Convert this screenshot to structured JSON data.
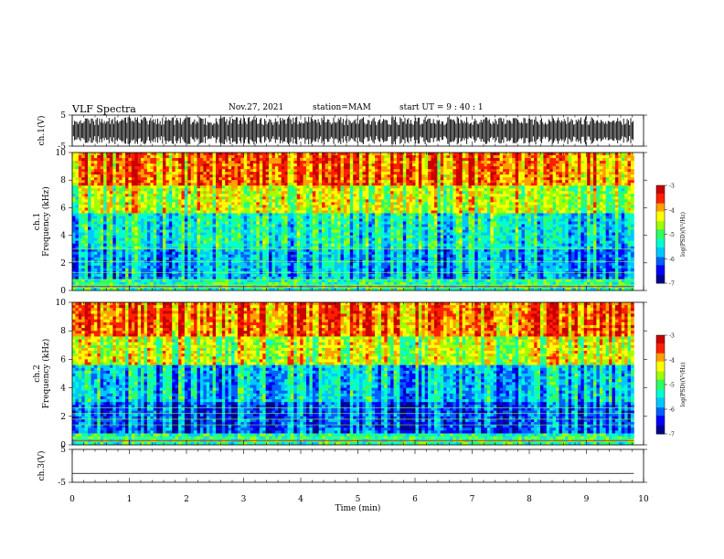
{
  "header": {
    "title": "VLF Spectra",
    "date": "Nov.27, 2021",
    "station": "station=MAM",
    "start": "start UT =  9 : 40 : 1"
  },
  "chart_data": [
    {
      "type": "line",
      "name": "ch1-waveform",
      "ylabel": "ch.1(V)",
      "xlim": [
        0,
        10
      ],
      "ylim": [
        -5,
        5
      ],
      "yticks": [
        5,
        -5
      ],
      "data_extent_min": [
        0,
        9.83
      ],
      "description_values": "dense noise bursts roughly between -5 and 5 V"
    },
    {
      "type": "heatmap",
      "name": "ch1-spectrogram",
      "ylabel": "ch.1\nFrequency (kHz)",
      "xlim": [
        0,
        10
      ],
      "ylim": [
        0,
        10
      ],
      "yticks": [
        0,
        2,
        4,
        6,
        8,
        10
      ],
      "data_extent_min": [
        0,
        9.83
      ],
      "colorbar": {
        "label": "log(PSD)(V²/Hz)",
        "range": [
          -7,
          -3
        ],
        "ticks": [
          -3,
          -4,
          -5,
          -6,
          -7
        ]
      }
    },
    {
      "type": "heatmap",
      "name": "ch2-spectrogram",
      "ylabel": "ch.2\nFrequency (kHz)",
      "xlim": [
        0,
        10
      ],
      "ylim": [
        0,
        10
      ],
      "yticks": [
        0,
        2,
        4,
        6,
        8,
        10
      ],
      "data_extent_min": [
        0,
        9.83
      ],
      "colorbar": {
        "label": "log(PSD)(V²/Hz)",
        "range": [
          -7,
          -3
        ],
        "ticks": [
          -3,
          -4,
          -5,
          -6,
          -7
        ]
      }
    },
    {
      "type": "line",
      "name": "ch3-waveform",
      "ylabel": "ch.3(V)",
      "xlim": [
        0,
        10
      ],
      "ylim": [
        -5,
        5
      ],
      "yticks": [
        5,
        -5
      ],
      "level_value": -2.3
    }
  ],
  "xaxis": {
    "label": "Time (min)",
    "ticks": [
      "0",
      "1",
      "2",
      "3",
      "4",
      "5",
      "6",
      "7",
      "8",
      "9",
      "10"
    ]
  },
  "colors": {
    "colormap": [
      "#00008f",
      "#0000ff",
      "#0060ff",
      "#00c8ff",
      "#00ffd0",
      "#30ff60",
      "#a0ff00",
      "#ffff00",
      "#ffa000",
      "#ff2000",
      "#c80000"
    ]
  }
}
